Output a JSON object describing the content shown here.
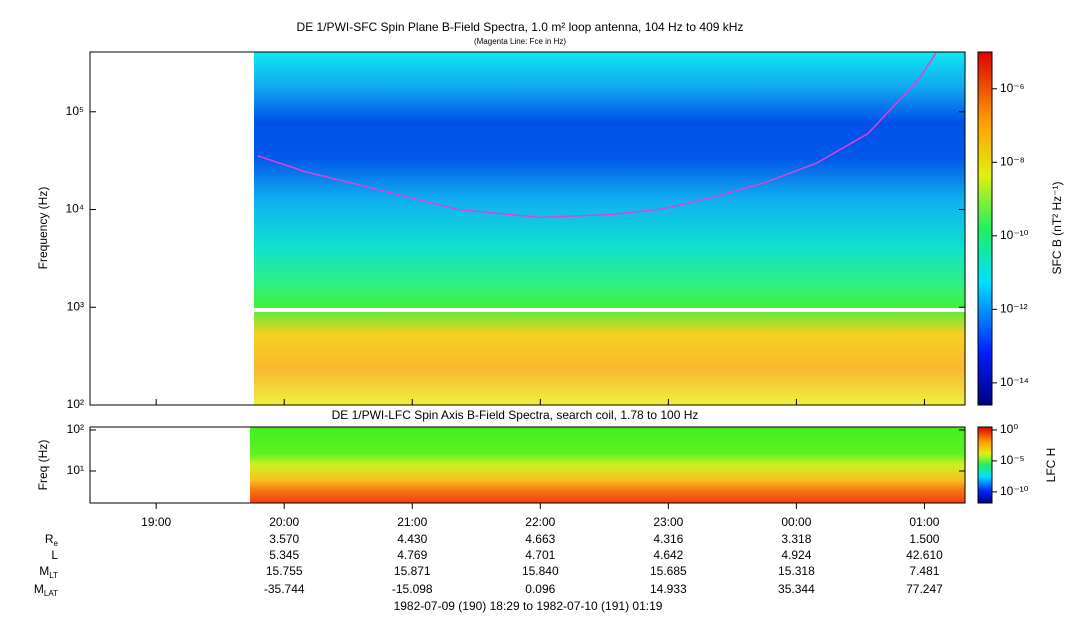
{
  "chart_data": [
    {
      "type": "spectrogram",
      "title": "DE 1/PWI-SFC  Spin Plane B-Field Spectra, 1.0 m² loop antenna, 104 Hz to 409 kHz",
      "subtitle": "(Magenta Line: Fce in Hz)",
      "y_label": "Frequency (Hz)",
      "log_y": true,
      "ylim": [
        100,
        409000
      ],
      "yticks": [
        {
          "value": 100,
          "label": "10²"
        },
        {
          "value": 1000,
          "label": "10³"
        },
        {
          "value": 10000,
          "label": "10⁴"
        },
        {
          "value": 100000,
          "label": "10⁵"
        }
      ],
      "xlim": [
        18.4833,
        25.3167
      ],
      "line": {
        "color": "#e040e0",
        "x": [
          19.79,
          20.16,
          20.96,
          21.36,
          22.0,
          22.56,
          22.96,
          23.36,
          23.76,
          24.16,
          24.56,
          24.96,
          25.09
        ],
        "values": [
          35500,
          24500,
          13500,
          10000,
          8300,
          8900,
          10200,
          13500,
          19000,
          30000,
          60000,
          219000,
          400000
        ]
      },
      "colorbar_label": "SFC B (nT² Hz⁻¹)",
      "colorbar_lim": [
        2.5e-15,
        1e-05
      ],
      "colorbar_ticks": [
        {
          "value": 1e-14,
          "label": "10⁻¹⁴"
        },
        {
          "value": 1e-12,
          "label": "10⁻¹²"
        },
        {
          "value": 1e-10,
          "label": "10⁻¹⁰"
        },
        {
          "value": 1e-08,
          "label": "10⁻⁸"
        },
        {
          "value": 1e-06,
          "label": "10⁻⁶"
        }
      ]
    },
    {
      "type": "spectrogram",
      "title": "DE 1/PWI-LFC  Spin Axis B-Field Spectra, search coil, 1.78 to 100 Hz",
      "y_label": "Freq (Hz)",
      "log_y": true,
      "ylim": [
        1.66,
        118
      ],
      "yticks": [
        {
          "value": 10,
          "label": "10¹"
        },
        {
          "value": 100,
          "label": "10²"
        }
      ],
      "xlim": [
        18.4833,
        25.3167
      ],
      "xticks": [
        {
          "value": 19,
          "label": "19:00"
        },
        {
          "value": 20,
          "label": "20:00"
        },
        {
          "value": 21,
          "label": "21:00"
        },
        {
          "value": 22,
          "label": "22:00"
        },
        {
          "value": 23,
          "label": "23:00"
        },
        {
          "value": 24,
          "label": "00:00"
        },
        {
          "value": 25,
          "label": "01:00"
        }
      ],
      "colorbar_label": "LFC H",
      "colorbar_lim": [
        1.6e-12,
        3
      ],
      "colorbar_ticks": [
        {
          "value": 1e-10,
          "label": "10⁻¹⁰"
        },
        {
          "value": 1e-05,
          "label": "10⁻⁵"
        },
        {
          "value": 1,
          "label": "10⁰"
        }
      ]
    }
  ],
  "ephemeris": [
    {
      "label": "R",
      "sub": "e",
      "values": [
        "3.570",
        "4.430",
        "4.663",
        "4.316",
        "3.318",
        "1.500"
      ]
    },
    {
      "label": "L",
      "sub": "",
      "values": [
        "5.345",
        "4.769",
        "4.701",
        "4.642",
        "4.924",
        "42.610"
      ]
    },
    {
      "label": "M",
      "sub": "LT",
      "values": [
        "15.755",
        "15.871",
        "15.840",
        "15.685",
        "15.318",
        "7.481"
      ]
    },
    {
      "label": "M",
      "sub": "LAT",
      "values": [
        "-35.744",
        "-15.098",
        "0.096",
        "14.933",
        "35.344",
        "77.247"
      ]
    }
  ],
  "footer": "1982-07-09 (190) 18:29 to 1982-07-10 (191) 01:19"
}
